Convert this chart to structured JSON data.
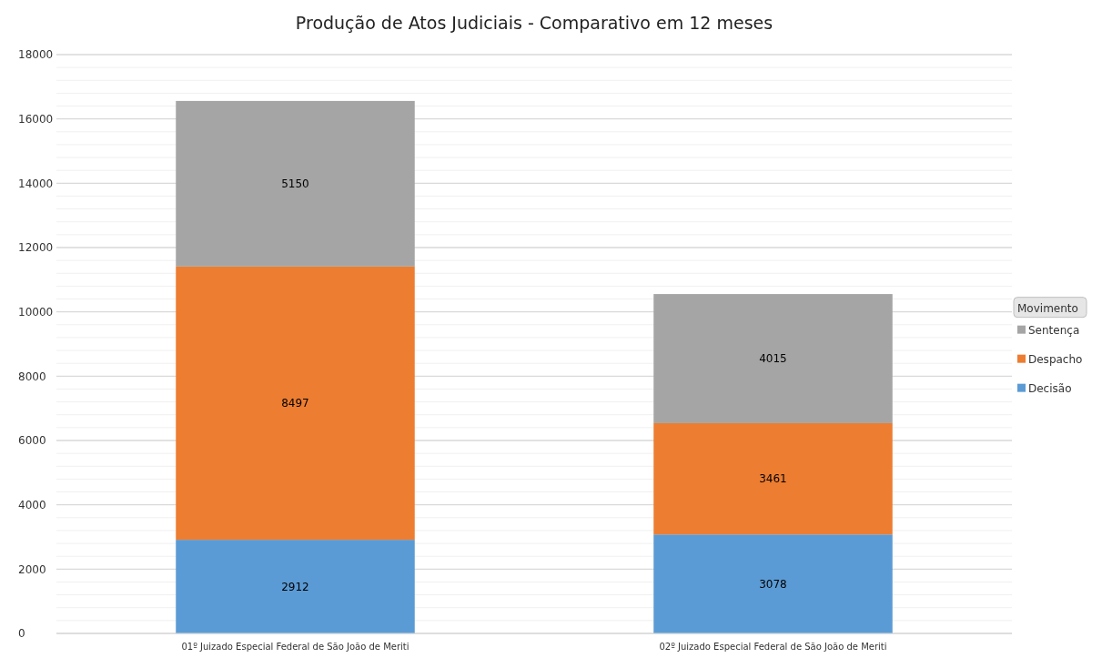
{
  "chart_data": {
    "type": "bar",
    "title": "Produção de Atos Judiciais - Comparativo em 12 meses",
    "legend_title": "Movimento",
    "categories": [
      "01º Juizado Especial Federal de São João de Meriti",
      "02º Juizado Especial Federal de São João de Meriti"
    ],
    "stacked": true,
    "data_labels": true,
    "legend": "right",
    "grid": "y",
    "series": [
      {
        "name": "Decisão",
        "color": "#5b9bd5",
        "values": [
          2912,
          3078
        ]
      },
      {
        "name": "Despacho",
        "color": "#ed7d31",
        "values": [
          8497,
          3461
        ]
      },
      {
        "name": "Sentença",
        "color": "#a5a5a5",
        "values": [
          5150,
          4015
        ]
      }
    ],
    "ylim": [
      0,
      18000
    ],
    "yticks": [
      0,
      {
        "value": 400,
        "label": null
      },
      {
        "value": 800,
        "label": null
      },
      {
        "value": 1200,
        "label": null
      },
      {
        "value": 1600,
        "label": null
      },
      2000,
      {
        "value": 2400,
        "label": null
      },
      {
        "value": 2800,
        "label": null
      },
      {
        "value": 3200,
        "label": null
      },
      {
        "value": 3600,
        "label": null
      },
      4000,
      {
        "value": 4400,
        "label": null
      },
      {
        "value": 4800,
        "label": null
      },
      {
        "value": 5200,
        "label": null
      },
      {
        "value": 5600,
        "label": null
      },
      6000,
      {
        "value": 6400,
        "label": null
      },
      {
        "value": 6800,
        "label": null
      },
      {
        "value": 7200,
        "label": null
      },
      {
        "value": 7600,
        "label": null
      },
      8000,
      {
        "value": 8400,
        "label": null
      },
      {
        "value": 8800,
        "label": null
      },
      {
        "value": 9200,
        "label": null
      },
      {
        "value": 9600,
        "label": null
      },
      10000,
      {
        "value": 10400,
        "label": null
      },
      {
        "value": 10800,
        "label": null
      },
      {
        "value": 11200,
        "label": null
      },
      {
        "value": 11600,
        "label": null
      },
      12000,
      {
        "value": 12400,
        "label": null
      },
      {
        "value": 12800,
        "label": null
      },
      {
        "value": 13200,
        "label": null
      },
      {
        "value": 13600,
        "label": null
      },
      14000,
      {
        "value": 14400,
        "label": null
      },
      {
        "value": 14800,
        "label": null
      },
      {
        "value": 15200,
        "label": null
      },
      {
        "value": 15600,
        "label": null
      },
      16000,
      {
        "value": 16400,
        "label": null
      },
      {
        "value": 16800,
        "label": null
      },
      {
        "value": 17200,
        "label": null
      },
      {
        "value": 17600,
        "label": null
      },
      18000
    ]
  }
}
